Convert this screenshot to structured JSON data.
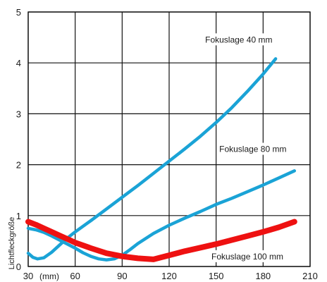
{
  "chart_data": {
    "type": "line",
    "title": "",
    "xlabel": "(mm)",
    "ylabel": "Lichtfleckgröße",
    "xlim": [
      30,
      210
    ],
    "ylim": [
      0,
      5
    ],
    "x_ticks": [
      "30",
      "60",
      "90",
      "120",
      "150",
      "180",
      "210"
    ],
    "y_ticks": [
      "0",
      "1",
      "2",
      "3",
      "4",
      "5"
    ],
    "grid": true,
    "legend": "none",
    "series": [
      {
        "name": "Fokuslage 40 mm",
        "color": "#1aa3d6",
        "x": [
          30,
          33,
          36,
          40,
          45,
          50,
          55,
          60,
          70,
          80,
          90,
          100,
          110,
          120,
          130,
          140,
          150,
          160,
          170,
          180,
          188
        ],
        "y": [
          0.26,
          0.18,
          0.15,
          0.17,
          0.28,
          0.42,
          0.56,
          0.68,
          0.9,
          1.13,
          1.36,
          1.59,
          1.83,
          2.07,
          2.31,
          2.56,
          2.83,
          3.12,
          3.44,
          3.78,
          4.08
        ]
      },
      {
        "name": "Fokuslage 80 mm",
        "color": "#1aa3d6",
        "x": [
          30,
          35,
          40,
          45,
          50,
          55,
          60,
          65,
          70,
          75,
          80,
          85,
          90,
          95,
          100,
          110,
          120,
          130,
          140,
          150,
          160,
          170,
          180,
          190,
          200
        ],
        "y": [
          0.75,
          0.72,
          0.67,
          0.6,
          0.52,
          0.44,
          0.36,
          0.27,
          0.2,
          0.15,
          0.13,
          0.15,
          0.22,
          0.33,
          0.45,
          0.65,
          0.81,
          0.95,
          1.08,
          1.22,
          1.34,
          1.47,
          1.6,
          1.74,
          1.88
        ]
      },
      {
        "name": "Fokuslage 100 mm",
        "color": "#ee1111",
        "x": [
          30,
          35,
          40,
          45,
          50,
          55,
          60,
          70,
          80,
          90,
          100,
          110,
          120,
          130,
          140,
          150,
          160,
          170,
          180,
          190,
          200
        ],
        "y": [
          0.88,
          0.82,
          0.75,
          0.68,
          0.61,
          0.54,
          0.47,
          0.36,
          0.26,
          0.2,
          0.16,
          0.14,
          0.22,
          0.3,
          0.37,
          0.44,
          0.52,
          0.6,
          0.68,
          0.77,
          0.88
        ]
      }
    ],
    "annotations": [
      {
        "text": "Fokuslage 40 mm",
        "x": 143,
        "y": 4.4
      },
      {
        "text": "Fokuslage 80 mm",
        "x": 152,
        "y": 2.25
      },
      {
        "text": "Fokuslage 100 mm",
        "x": 147,
        "y": 0.14
      }
    ]
  }
}
